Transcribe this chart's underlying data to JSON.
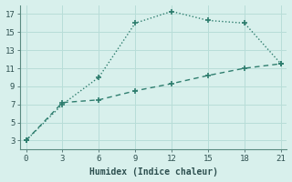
{
  "line1_x": [
    0,
    3,
    6,
    9,
    12,
    15,
    18,
    21
  ],
  "line1_y": [
    3,
    7,
    10,
    16,
    17.3,
    16.3,
    16.0,
    11.5
  ],
  "line2_x": [
    0,
    3,
    6,
    9,
    12,
    15,
    18,
    21
  ],
  "line2_y": [
    3,
    7.2,
    7.5,
    8.5,
    9.3,
    10.2,
    11.0,
    11.5
  ],
  "line_color": "#2e7d6e",
  "bg_color": "#d8f0ec",
  "grid_color": "#b8ddd8",
  "xlabel": "Humidex (Indice chaleur)",
  "xlim": [
    -0.5,
    21.5
  ],
  "ylim": [
    2.0,
    18.0
  ],
  "xticks": [
    0,
    3,
    6,
    9,
    12,
    15,
    18,
    21
  ],
  "yticks": [
    3,
    5,
    7,
    9,
    11,
    13,
    15,
    17
  ],
  "tick_fontsize": 6.5,
  "xlabel_fontsize": 7.0,
  "tick_color": "#2e5050",
  "spine_color": "#5a8a80"
}
